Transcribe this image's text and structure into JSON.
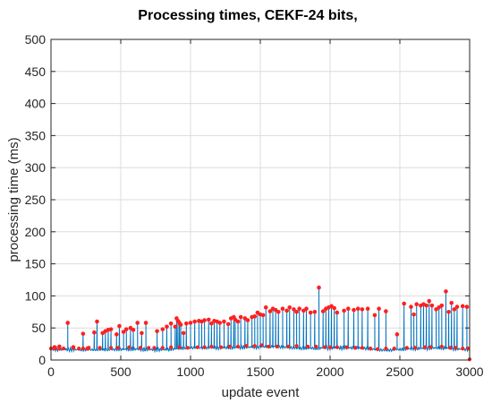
{
  "chart_data": {
    "type": "line",
    "title": "Processing times, CEKF-24 bits,",
    "xlabel": "update event",
    "ylabel": "processing time (ms)",
    "xlim": [
      0,
      3000
    ],
    "ylim": [
      0,
      500
    ],
    "xticks": [
      0,
      500,
      1000,
      1500,
      2000,
      2500,
      3000
    ],
    "yticks": [
      0,
      50,
      100,
      150,
      200,
      250,
      300,
      350,
      400,
      450,
      500
    ],
    "xtick_labels": [
      "0",
      "500",
      "1000",
      "1500",
      "2000",
      "2500",
      "3000"
    ],
    "ytick_labels": [
      "0",
      "50",
      "100",
      "150",
      "200",
      "250",
      "300",
      "350",
      "400",
      "450",
      "500"
    ],
    "grid": true,
    "series": [
      {
        "color": "#0072BD",
        "style": "line",
        "baseline": [
          [
            0,
            17
          ],
          [
            200,
            16
          ],
          [
            400,
            16
          ],
          [
            600,
            17
          ],
          [
            800,
            16
          ],
          [
            1000,
            19
          ],
          [
            1200,
            19
          ],
          [
            1400,
            20
          ],
          [
            1600,
            21
          ],
          [
            1800,
            18
          ],
          [
            2000,
            19
          ],
          [
            2200,
            19
          ],
          [
            2400,
            15
          ],
          [
            2600,
            18
          ],
          [
            2800,
            19
          ],
          [
            3000,
            16
          ]
        ],
        "spikes": [
          [
            25,
            20
          ],
          [
            60,
            21
          ],
          [
            120,
            58
          ],
          [
            160,
            20
          ],
          [
            230,
            41
          ],
          [
            270,
            19
          ],
          [
            310,
            43
          ],
          [
            330,
            60
          ],
          [
            370,
            42
          ],
          [
            390,
            45
          ],
          [
            410,
            47
          ],
          [
            430,
            48
          ],
          [
            470,
            40
          ],
          [
            490,
            53
          ],
          [
            520,
            44
          ],
          [
            540,
            48
          ],
          [
            570,
            50
          ],
          [
            590,
            47
          ],
          [
            620,
            58
          ],
          [
            650,
            42
          ],
          [
            680,
            58
          ],
          [
            760,
            45
          ],
          [
            800,
            48
          ],
          [
            830,
            52
          ],
          [
            860,
            57
          ],
          [
            890,
            52
          ],
          [
            900,
            65
          ],
          [
            910,
            61
          ],
          [
            920,
            58
          ],
          [
            930,
            55
          ],
          [
            950,
            42
          ],
          [
            970,
            57
          ],
          [
            1000,
            58
          ],
          [
            1030,
            60
          ],
          [
            1060,
            61
          ],
          [
            1080,
            60
          ],
          [
            1100,
            62
          ],
          [
            1130,
            63
          ],
          [
            1150,
            57
          ],
          [
            1170,
            61
          ],
          [
            1190,
            60
          ],
          [
            1210,
            58
          ],
          [
            1240,
            60
          ],
          [
            1270,
            56
          ],
          [
            1290,
            65
          ],
          [
            1310,
            67
          ],
          [
            1320,
            63
          ],
          [
            1340,
            60
          ],
          [
            1360,
            67
          ],
          [
            1390,
            65
          ],
          [
            1410,
            62
          ],
          [
            1440,
            67
          ],
          [
            1460,
            68
          ],
          [
            1480,
            74
          ],
          [
            1500,
            71
          ],
          [
            1520,
            70
          ],
          [
            1540,
            82
          ],
          [
            1570,
            76
          ],
          [
            1590,
            80
          ],
          [
            1610,
            78
          ],
          [
            1630,
            75
          ],
          [
            1660,
            80
          ],
          [
            1690,
            77
          ],
          [
            1710,
            82
          ],
          [
            1740,
            79
          ],
          [
            1760,
            75
          ],
          [
            1780,
            80
          ],
          [
            1810,
            77
          ],
          [
            1830,
            80
          ],
          [
            1860,
            74
          ],
          [
            1890,
            75
          ],
          [
            1920,
            113
          ],
          [
            1950,
            76
          ],
          [
            1970,
            80
          ],
          [
            1990,
            82
          ],
          [
            2010,
            84
          ],
          [
            2030,
            81
          ],
          [
            2050,
            74
          ],
          [
            2100,
            77
          ],
          [
            2130,
            80
          ],
          [
            2170,
            78
          ],
          [
            2200,
            80
          ],
          [
            2230,
            79
          ],
          [
            2270,
            80
          ],
          [
            2320,
            70
          ],
          [
            2350,
            80
          ],
          [
            2400,
            76
          ],
          [
            2480,
            40
          ],
          [
            2530,
            88
          ],
          [
            2580,
            83
          ],
          [
            2600,
            71
          ],
          [
            2620,
            87
          ],
          [
            2650,
            85
          ],
          [
            2670,
            87
          ],
          [
            2690,
            85
          ],
          [
            2710,
            92
          ],
          [
            2730,
            85
          ],
          [
            2760,
            79
          ],
          [
            2780,
            82
          ],
          [
            2800,
            85
          ],
          [
            2830,
            107
          ],
          [
            2850,
            75
          ],
          [
            2870,
            89
          ],
          [
            2890,
            79
          ],
          [
            2910,
            83
          ],
          [
            2950,
            84
          ],
          [
            2980,
            83
          ]
        ]
      },
      {
        "color": "#ff2020",
        "style": "markers",
        "baseline_markers": [
          [
            0,
            18
          ],
          [
            30,
            18
          ],
          [
            60,
            18
          ],
          [
            90,
            18
          ],
          [
            160,
            19
          ],
          [
            200,
            18
          ],
          [
            230,
            18
          ],
          [
            260,
            18
          ],
          [
            350,
            19
          ],
          [
            430,
            19
          ],
          [
            480,
            19
          ],
          [
            560,
            20
          ],
          [
            640,
            19
          ],
          [
            700,
            19
          ],
          [
            740,
            19
          ],
          [
            800,
            19
          ],
          [
            860,
            20
          ],
          [
            920,
            20
          ],
          [
            980,
            19
          ],
          [
            1050,
            20
          ],
          [
            1100,
            20
          ],
          [
            1150,
            21
          ],
          [
            1220,
            20
          ],
          [
            1280,
            21
          ],
          [
            1340,
            21
          ],
          [
            1400,
            22
          ],
          [
            1460,
            22
          ],
          [
            1510,
            23
          ],
          [
            1560,
            21
          ],
          [
            1620,
            21
          ],
          [
            1700,
            21
          ],
          [
            1760,
            22
          ],
          [
            1840,
            21
          ],
          [
            1900,
            21
          ],
          [
            1960,
            20
          ],
          [
            2000,
            20
          ],
          [
            2050,
            20
          ],
          [
            2120,
            20
          ],
          [
            2180,
            19
          ],
          [
            2230,
            19
          ],
          [
            2290,
            18
          ],
          [
            2340,
            17
          ],
          [
            2400,
            18
          ],
          [
            2460,
            18
          ],
          [
            2550,
            19
          ],
          [
            2610,
            19
          ],
          [
            2680,
            20
          ],
          [
            2720,
            20
          ],
          [
            2800,
            21
          ],
          [
            2860,
            19
          ],
          [
            2900,
            19
          ],
          [
            2950,
            18
          ],
          [
            2990,
            18
          ],
          [
            3000,
            1
          ]
        ]
      }
    ]
  }
}
